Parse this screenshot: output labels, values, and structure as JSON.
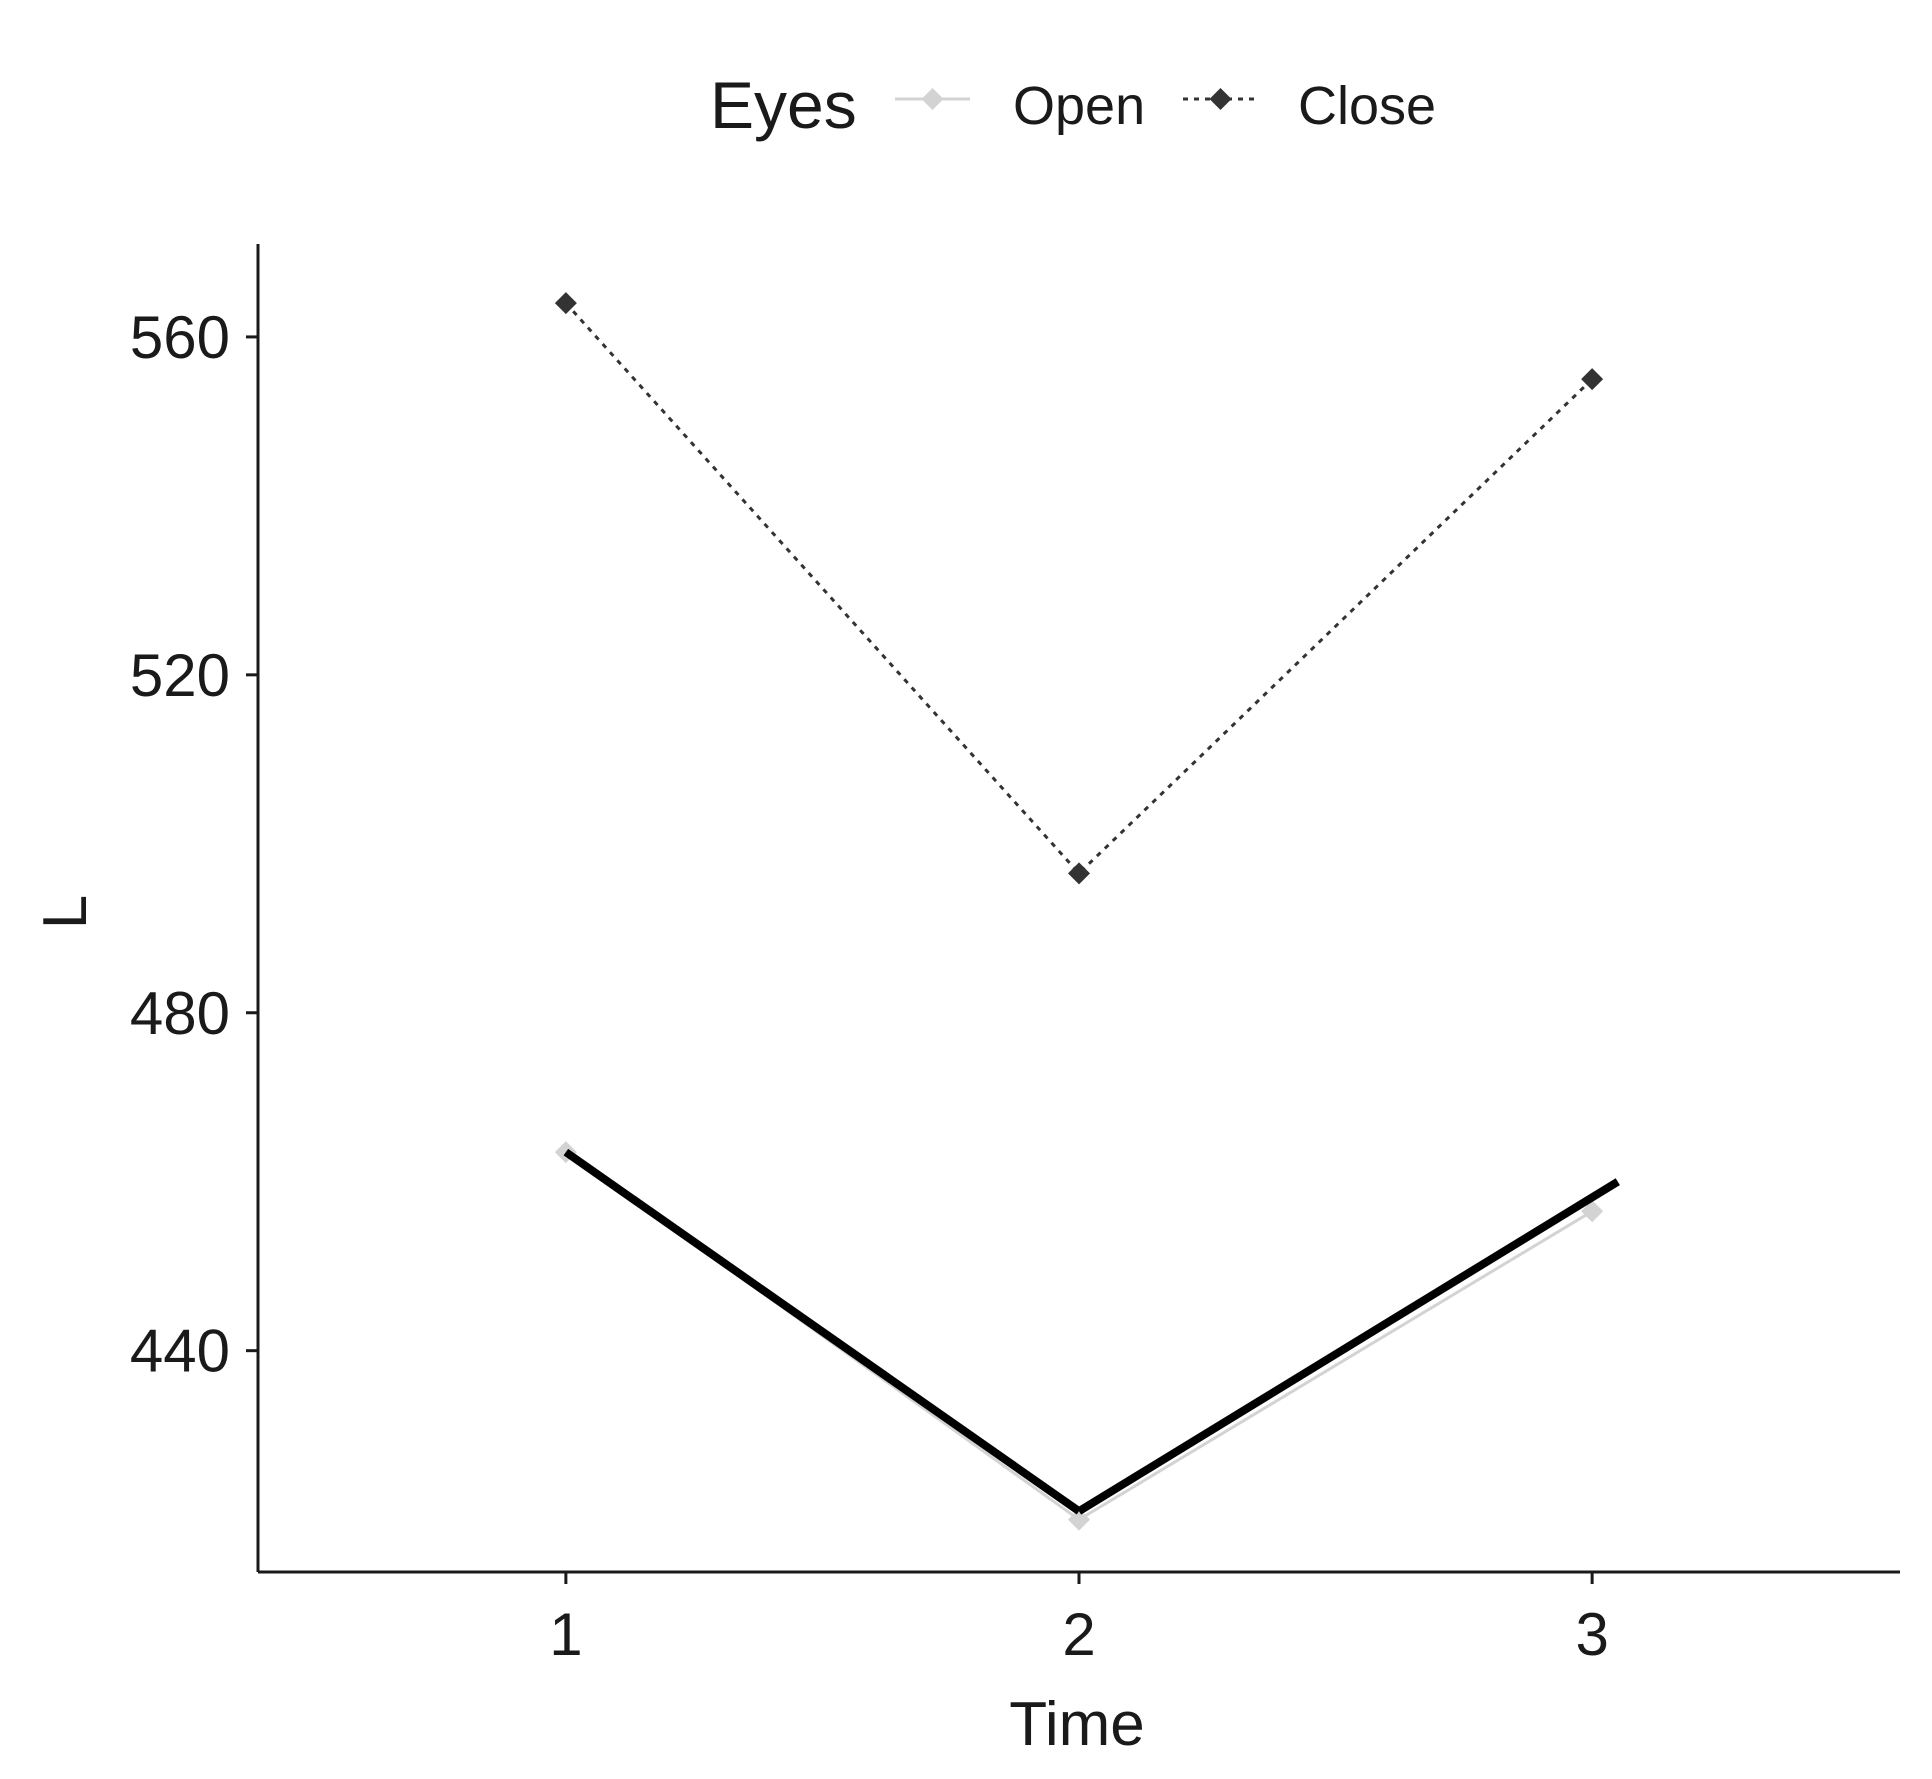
{
  "chart_data": {
    "type": "line",
    "xlabel": "Time",
    "ylabel": "L",
    "categories": [
      "1",
      "2",
      "3"
    ],
    "ylim": [
      413.8,
      571.0
    ],
    "yticks": [
      440,
      480,
      520,
      560
    ],
    "grid": false,
    "legend": {
      "title": "Eyes",
      "placement": "top",
      "entries": [
        "Open",
        "Close"
      ]
    },
    "series": [
      {
        "name": "Open",
        "values": [
          463.5,
          420.0,
          456.5
        ],
        "color": "#d3d3d3",
        "line_style": "solid",
        "marker": "diamond"
      },
      {
        "name": "Close",
        "values": [
          564.0,
          496.5,
          555.0
        ],
        "color": "#333333",
        "line_style": "dotted",
        "marker": "diamond"
      }
    ],
    "annotations": [
      {
        "type": "overlay-line",
        "color": "#000000",
        "points": [
          [
            1,
            463.5
          ],
          [
            2,
            421.0
          ]
        ]
      },
      {
        "type": "overlay-line",
        "color": "#000000",
        "points": [
          [
            2,
            421.0
          ],
          [
            3.05,
            460.0
          ]
        ]
      }
    ]
  }
}
